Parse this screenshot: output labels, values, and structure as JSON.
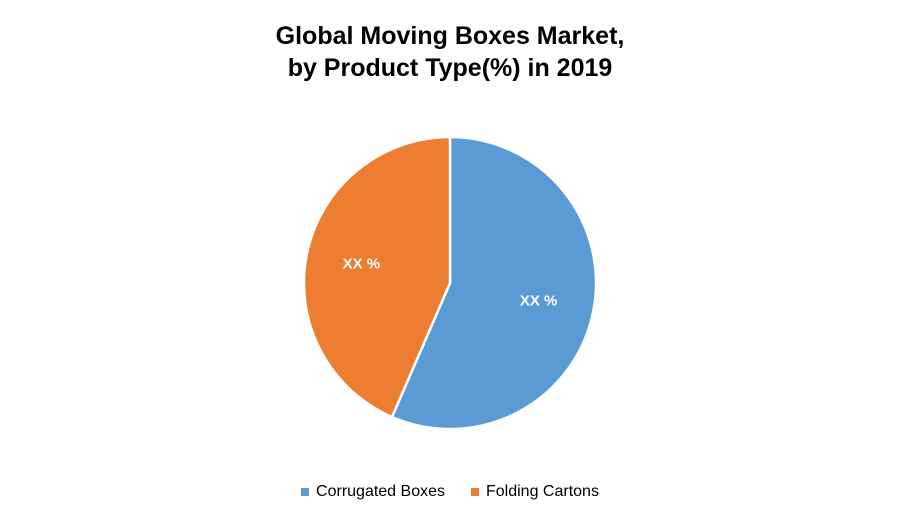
{
  "chart_data": {
    "type": "pie",
    "title": "Global Moving Boxes Market,",
    "subtitle": "by Product Type(%) in 2019",
    "series": [
      {
        "name": "Corrugated Boxes",
        "value": 56.5,
        "label": "XX %",
        "color": "#5B9BD5"
      },
      {
        "name": "Folding Cartons",
        "value": 43.5,
        "label": "XX %",
        "color": "#ED7D31"
      }
    ],
    "start_angle": "12 o'clock, clockwise",
    "legend_position": "bottom"
  }
}
